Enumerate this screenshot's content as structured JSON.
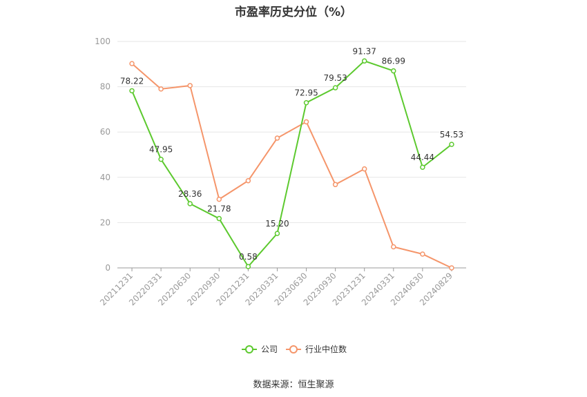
{
  "chart_data": {
    "type": "line",
    "title": "市盈率历史分位（%）",
    "categories": [
      "20211231",
      "20220331",
      "20220630",
      "20220930",
      "20221231",
      "20230331",
      "20230630",
      "20230930",
      "20231231",
      "20240331",
      "20240630",
      "20240829"
    ],
    "series": [
      {
        "name": "公司",
        "color": "#5cc92e",
        "values": [
          78.22,
          47.95,
          28.36,
          21.78,
          0.58,
          15.2,
          72.95,
          79.53,
          91.37,
          86.99,
          44.44,
          54.53
        ],
        "labels": [
          "78.22",
          "47.95",
          "28.36",
          "21.78",
          "0.58",
          "15.20",
          "72.95",
          "79.53",
          "91.37",
          "86.99",
          "44.44",
          "54.53"
        ]
      },
      {
        "name": "行业中位数",
        "color": "#f5956a",
        "values": [
          90.2,
          79.0,
          80.5,
          30.3,
          38.5,
          57.3,
          64.5,
          36.8,
          43.7,
          9.3,
          6.1,
          0.0
        ]
      }
    ],
    "yticks": [
      "0",
      "20",
      "40",
      "60",
      "80",
      "100"
    ],
    "ylim": [
      0,
      100
    ],
    "grid": true,
    "legend_position": "bottom-center",
    "source": "数据来源：恒生聚源"
  }
}
